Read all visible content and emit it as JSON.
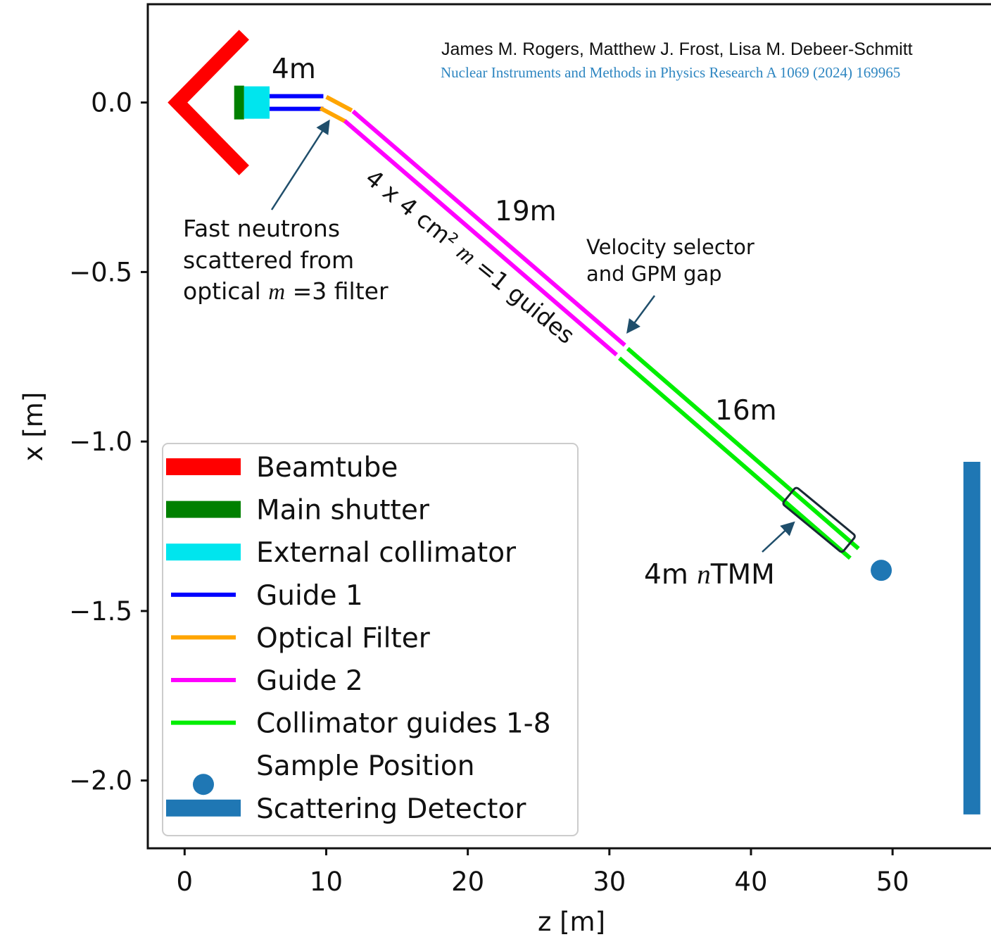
{
  "chart_data": {
    "type": "line",
    "xlabel": "z [m]",
    "ylabel": "x [m]",
    "xlim": [
      -2.6,
      57.3
    ],
    "ylim": [
      -2.2,
      0.29
    ],
    "xticks": [
      0,
      10,
      20,
      30,
      40,
      50
    ],
    "yticks": [
      0.0,
      -0.5,
      -1.0,
      -1.5,
      -2.0
    ],
    "xtick_labels": [
      "0",
      "10",
      "20",
      "30",
      "40",
      "50"
    ],
    "ytick_labels": [
      "0.0",
      "−0.5",
      "−1.0",
      "−1.5",
      "−2.0"
    ],
    "grid": false,
    "legend_position": "lower-left",
    "series": [
      {
        "name": "Beamtube",
        "color": "#ff0000",
        "style": "thick-line",
        "x": [
          4.2,
          -0.5,
          4.2
        ],
        "y": [
          0.2,
          0.0,
          -0.2
        ]
      },
      {
        "name": "Main shutter",
        "color": "#008000",
        "style": "block",
        "x": [
          3.5,
          4.2
        ],
        "y": [
          0.0,
          0.0
        ]
      },
      {
        "name": "External collimator",
        "color": "#00e5ee",
        "style": "block",
        "x": [
          4.2,
          6.0
        ],
        "y": [
          0.0,
          0.0
        ]
      },
      {
        "name": "Guide 1",
        "color": "#0000ff",
        "style": "double-line",
        "x": [
          6.0,
          9.8
        ],
        "y": [
          0.0,
          0.0
        ]
      },
      {
        "name": "Optical Filter",
        "color": "#ffa500",
        "style": "double-line",
        "x": [
          9.8,
          11.6
        ],
        "y": [
          0.0,
          -0.04
        ]
      },
      {
        "name": "Guide 2",
        "color": "#ff00ff",
        "style": "double-line",
        "x": [
          11.6,
          30.8
        ],
        "y": [
          -0.04,
          -0.73
        ]
      },
      {
        "name": "Collimator guides 1-8",
        "color": "#00ee00",
        "style": "double-line",
        "x": [
          31.0,
          47.3
        ],
        "y": [
          -0.74,
          -1.33
        ]
      },
      {
        "name": "Sample Position",
        "color": "#1f77b4",
        "style": "marker",
        "x": [
          49.2
        ],
        "y": [
          -1.38
        ]
      },
      {
        "name": "Scattering Detector",
        "color": "#1f77b4",
        "style": "thick-line",
        "x": [
          55.6,
          55.6
        ],
        "y": [
          -1.06,
          -2.1
        ]
      }
    ],
    "annotations": {
      "citation_authors": "James M. Rogers,  Matthew J. Frost, Lisa M. Debeer-Schmitt",
      "citation_journal": "Nuclear Instruments and Methods in Physics Research A 1069 (2024) 169965",
      "len_4m": "4m",
      "len_19m": "19m",
      "len_16m": "16m",
      "fast_neutrons_line1": "Fast neutrons",
      "fast_neutrons_line2": "scattered from",
      "fast_neutrons_line3_pre": "optical ",
      "fast_neutrons_line3_m": "m",
      "fast_neutrons_line3_post": " =3 filter",
      "guides_pre": "4 x 4 cm²  ",
      "guides_m": "m",
      "guides_post": " =1 guides",
      "velocity_line1": "Velocity selector",
      "velocity_line2": "and GPM gap",
      "ntmm_pre": "4m ",
      "ntmm_n": "n",
      "ntmm_post": "TMM"
    }
  }
}
